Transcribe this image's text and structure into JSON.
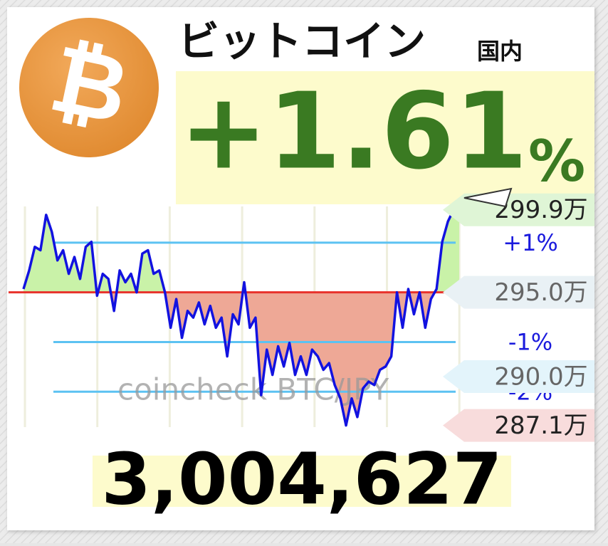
{
  "header": {
    "title": "ビットコイン",
    "region": "国内"
  },
  "change": {
    "value": "+1.61",
    "unit": "%"
  },
  "price": "3,004,627",
  "chart_data": {
    "type": "line",
    "watermark": "coincheck BTC/JPY",
    "ylim": [
      287.0,
      300.1
    ],
    "baseline": {
      "value": 295.0,
      "color": "#e8322c"
    },
    "above_color": "#c9f2a8",
    "below_color": "#eea896",
    "reference_color": "#5cc2f2",
    "reference_lines": [
      {
        "value": 297.95,
        "label": "+1%"
      },
      {
        "value": 292.05,
        "label": "-1%"
      },
      {
        "value": 289.1,
        "label": "-2%"
      }
    ],
    "price_labels": [
      {
        "value": 299.9,
        "label": "299.9万",
        "color": "#dff5d6",
        "text_color": "#222"
      },
      {
        "value": 295.0,
        "label": "295.0万",
        "color": "#e9f1f5",
        "text_color": "#666"
      },
      {
        "value": 290.0,
        "label": "290.0万",
        "color": "#e3f4fb",
        "text_color": "#666"
      },
      {
        "value": 287.1,
        "label": "287.1万",
        "color": "#f8dcdc",
        "text_color": "#222"
      }
    ],
    "series": [
      {
        "color": "#1212e0",
        "values": [
          295.2,
          296.3,
          297.7,
          297.5,
          299.6,
          298.6,
          296.9,
          297.5,
          296.1,
          297.1,
          295.8,
          297.7,
          298.0,
          294.8,
          296.1,
          295.8,
          293.9,
          296.3,
          295.6,
          296.1,
          295.0,
          297.3,
          297.5,
          296.1,
          296.3,
          295.0,
          292.9,
          294.6,
          292.3,
          293.9,
          293.5,
          294.4,
          293.1,
          294.2,
          292.9,
          293.5,
          291.2,
          293.7,
          293.1,
          295.6,
          292.9,
          293.5,
          288.9,
          291.6,
          290.1,
          291.8,
          290.6,
          292.0,
          290.1,
          291.2,
          290.1,
          291.6,
          291.2,
          290.4,
          290.8,
          289.5,
          288.7,
          287.1,
          288.7,
          287.6,
          289.3,
          289.7,
          289.5,
          290.4,
          290.6,
          291.2,
          295.0,
          292.9,
          295.2,
          293.7,
          295.0,
          292.9,
          294.6,
          295.2,
          298.0,
          299.2,
          299.9,
          299.9
        ]
      }
    ]
  }
}
